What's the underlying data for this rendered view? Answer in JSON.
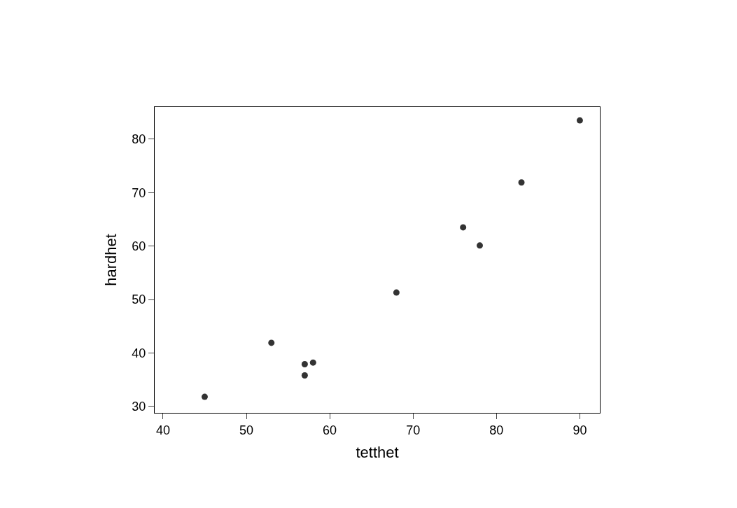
{
  "chart_data": {
    "type": "scatter",
    "xlabel": "tetthet",
    "ylabel": "hardhet",
    "x": [
      45,
      53,
      57,
      57,
      58,
      68,
      76,
      78,
      83,
      90
    ],
    "values": [
      31.8,
      41.9,
      37.9,
      35.8,
      38.2,
      51.3,
      63.5,
      60.1,
      71.9,
      83.5
    ],
    "color": "#333333",
    "marker": "circle",
    "xlim": [
      39,
      92.4
    ],
    "ylim": [
      28.8,
      86
    ],
    "xticks": [
      40,
      50,
      60,
      70,
      80,
      90
    ],
    "yticks": [
      30,
      40,
      50,
      60,
      70,
      80
    ],
    "legend": false
  }
}
